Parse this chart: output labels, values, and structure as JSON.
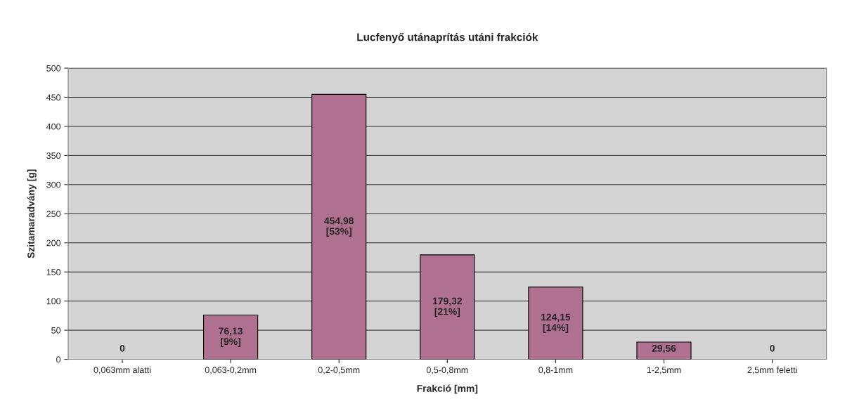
{
  "chart_data": {
    "type": "bar",
    "title": "Lucfenyő utánaprítás utáni frakciók",
    "xlabel": "Frakció [mm]",
    "ylabel": "Szitamaradvány [g]",
    "categories": [
      "0,063mm alatti",
      "0,063-0,2mm",
      "0,2-0,5mm",
      "0,5-0,8mm",
      "0,8-1mm",
      "1-2,5mm",
      "2,5mm feletti"
    ],
    "values": [
      0,
      76.13,
      454.98,
      179.32,
      124.15,
      29.56,
      0
    ],
    "value_labels": [
      "0",
      "76,13\n[9%]",
      "454,98\n[53%]",
      "179,32\n[21%]",
      "124,15\n[14%]",
      "29,56",
      "0"
    ],
    "color": "#b07090",
    "ylim": [
      0,
      500
    ],
    "yticks": [
      0,
      50,
      100,
      150,
      200,
      250,
      300,
      350,
      400,
      450,
      500
    ],
    "grid": "y",
    "legend": false
  }
}
